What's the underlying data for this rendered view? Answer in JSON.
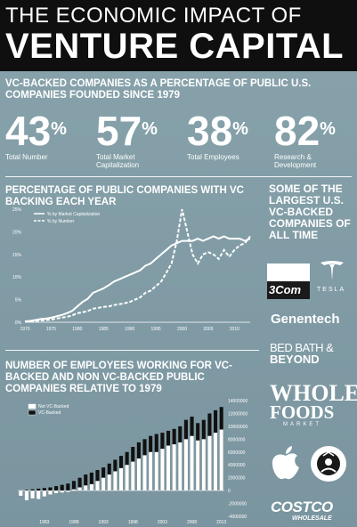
{
  "header": {
    "title_line1": "THE ECONOMIC IMPACT OF",
    "title_line2": "VENTURE CAPITAL"
  },
  "section1": {
    "heading": "VC-BACKED COMPANIES AS A PERCENTAGE OF PUBLIC U.S. COMPANIES FOUNDED SINCE 1979",
    "stats": [
      {
        "value": "43",
        "unit": "%",
        "label": "Total Number"
      },
      {
        "value": "57",
        "unit": "%",
        "label": "Total Market Capitalization"
      },
      {
        "value": "38",
        "unit": "%",
        "label": "Total Employees"
      },
      {
        "value": "82",
        "unit": "%",
        "label": "Research & Development"
      }
    ]
  },
  "section2": {
    "heading": "PERCENTAGE OF PUBLIC COMPANIES WITH VC BACKING EACH YEAR"
  },
  "section3": {
    "heading": "NUMBER OF EMPLOYEES WORKING FOR VC-BACKED AND NON VC-BACKED PUBLIC COMPANIES RELATIVE TO 1979"
  },
  "sidebar": {
    "heading": "SOME OF THE LARGEST U.S. VC-BACKED COMPANIES OF ALL TIME",
    "logos": [
      "3Com",
      "TESLA",
      "Genentech",
      "BED BATH &",
      "BEYOND",
      "WHOLE",
      "FOODS",
      "MARKET",
      "COSTCO",
      "WHOLESALE"
    ]
  },
  "chart_data": [
    {
      "type": "line",
      "x": [
        1970,
        1971,
        1972,
        1973,
        1974,
        1975,
        1976,
        1977,
        1978,
        1979,
        1980,
        1981,
        1982,
        1983,
        1984,
        1985,
        1986,
        1987,
        1988,
        1989,
        1990,
        1991,
        1992,
        1993,
        1994,
        1995,
        1996,
        1997,
        1998,
        1999,
        2000,
        2001,
        2002,
        2003,
        2004,
        2005,
        2006,
        2007,
        2008,
        2009,
        2010,
        2011,
        2012,
        2013
      ],
      "series": [
        {
          "name": "% by Market Capitalization",
          "style": "solid",
          "values": [
            0.2,
            0.3,
            0.5,
            0.7,
            0.8,
            1.0,
            1.3,
            1.6,
            2.0,
            2.5,
            3.5,
            4.5,
            5.2,
            6.5,
            7.0,
            7.5,
            8.2,
            9.0,
            9.5,
            10.0,
            10.5,
            11.0,
            11.5,
            12.5,
            13.0,
            14.0,
            15.0,
            16.0,
            17.0,
            17.5,
            18.0,
            18.0,
            18.0,
            18.5,
            18.0,
            18.5,
            19.0,
            18.5,
            19.0,
            18.5,
            18.5,
            18.5,
            18.0,
            18.5
          ]
        },
        {
          "name": "% by Number",
          "style": "dashed",
          "values": [
            0.1,
            0.2,
            0.3,
            0.4,
            0.5,
            0.6,
            0.8,
            1.0,
            1.2,
            1.5,
            2.0,
            2.2,
            2.5,
            3.0,
            3.2,
            3.4,
            3.5,
            3.8,
            4.0,
            4.2,
            4.5,
            5.0,
            5.5,
            6.5,
            7.0,
            8.0,
            9.0,
            11.0,
            13.0,
            18.0,
            25.0,
            20.0,
            15.0,
            13.0,
            15.0,
            15.5,
            15.0,
            14.0,
            16.0,
            14.5,
            16.0,
            17.0,
            17.5,
            19.0
          ]
        }
      ],
      "xticks": [
        1970,
        1975,
        1980,
        1985,
        1990,
        1995,
        2000,
        2005,
        2010
      ],
      "yticks": [
        "0%",
        "5%",
        "10%",
        "15%",
        "20%",
        "25%"
      ],
      "ylim": [
        0,
        26
      ],
      "legend": "top-left",
      "grid": false
    },
    {
      "type": "bar",
      "stacked": false,
      "categories": [
        1979,
        1980,
        1981,
        1982,
        1983,
        1984,
        1985,
        1986,
        1987,
        1988,
        1989,
        1990,
        1991,
        1992,
        1993,
        1994,
        1995,
        1996,
        1997,
        1998,
        1999,
        2000,
        2001,
        2002,
        2003,
        2004,
        2005,
        2006,
        2007,
        2008,
        2009,
        2010,
        2011,
        2012,
        2013
      ],
      "series": [
        {
          "name": "Not VC-Backed",
          "color": "#ffffff",
          "values": [
            -800000,
            -1500000,
            -1200000,
            -1300000,
            -900000,
            -600000,
            -400000,
            -300000,
            -200000,
            200000,
            500000,
            800000,
            1000000,
            1500000,
            2000000,
            2500000,
            3000000,
            3500000,
            4000000,
            4500000,
            5000000,
            5500000,
            6000000,
            6000000,
            6500000,
            7000000,
            7200000,
            7500000,
            8000000,
            8500000,
            7800000,
            8000000,
            8500000,
            9000000,
            9500000
          ]
        },
        {
          "name": "VC-Backed",
          "color": "#111111",
          "values": [
            0,
            100000,
            200000,
            300000,
            400000,
            500000,
            700000,
            900000,
            1100000,
            1500000,
            2000000,
            2500000,
            2800000,
            3200000,
            3600000,
            4200000,
            4800000,
            5400000,
            6000000,
            6800000,
            7500000,
            8000000,
            8500000,
            8800000,
            9000000,
            9300000,
            9600000,
            10000000,
            11000000,
            11500000,
            10500000,
            11000000,
            12000000,
            12500000,
            13000000
          ]
        }
      ],
      "xticks": [
        1983,
        1988,
        1993,
        1998,
        2003,
        2008,
        2013
      ],
      "yticks": [
        "14000000",
        "12000000",
        "10000000",
        "8000000",
        "6000000",
        "4000000",
        "2000000",
        "0",
        "-2000000",
        "-4000000"
      ],
      "ylim": [
        -4000000,
        14000000
      ],
      "legend": "top-left"
    }
  ]
}
